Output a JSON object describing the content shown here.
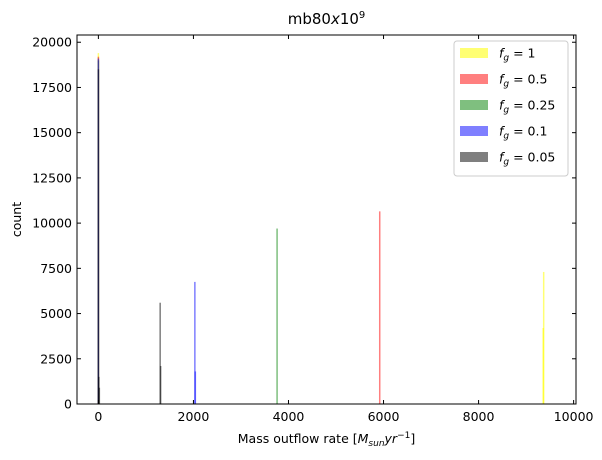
{
  "chart_data": {
    "type": "histogram",
    "title": "mb80x10^9",
    "xlabel": "Mass outflow rate [M_sun yr^-1]",
    "ylabel": "count",
    "xlim": [
      -450,
      10050
    ],
    "ylim": [
      0,
      20400
    ],
    "xticks": [
      0,
      2000,
      4000,
      6000,
      8000,
      10000
    ],
    "yticks": [
      0,
      2500,
      5000,
      7500,
      10000,
      12500,
      15000,
      17500,
      20000
    ],
    "grid": false,
    "legend_position": "top-right",
    "series": [
      {
        "name": "f_g = 1",
        "legend_main": "f",
        "legend_sub": "g",
        "legend_value": " = 1",
        "color": "#ffff00",
        "alpha": 0.55,
        "bars": [
          {
            "x": 0,
            "count": 19400
          },
          {
            "x": 9370,
            "count": 7300
          },
          {
            "x": 9360,
            "count": 4200
          }
        ]
      },
      {
        "name": "f_g = 0.5",
        "legend_main": "f",
        "legend_sub": "g",
        "legend_value": " = 0.5",
        "color": "#ff0000",
        "alpha": 0.5,
        "bars": [
          {
            "x": 0,
            "count": 19200
          },
          {
            "x": 5920,
            "count": 10650
          }
        ]
      },
      {
        "name": "f_g = 0.25",
        "legend_main": "f",
        "legend_sub": "g",
        "legend_value": " = 0.25",
        "color": "#008000",
        "alpha": 0.5,
        "bars": [
          {
            "x": 0,
            "count": 19000
          },
          {
            "x": 3760,
            "count": 9700
          }
        ]
      },
      {
        "name": "f_g = 0.1",
        "legend_main": "f",
        "legend_sub": "g",
        "legend_value": " = 0.1",
        "color": "#0000ff",
        "alpha": 0.5,
        "bars": [
          {
            "x": 0,
            "count": 19100
          },
          {
            "x": 2030,
            "count": 6750
          },
          {
            "x": 2040,
            "count": 1800
          }
        ]
      },
      {
        "name": "f_g = 0.05",
        "legend_main": "f",
        "legend_sub": "g",
        "legend_value": " = 0.05",
        "color": "#000000",
        "alpha": 0.5,
        "bars": [
          {
            "x": 0,
            "count": 18500
          },
          {
            "x": 10,
            "count": 1500
          },
          {
            "x": 20,
            "count": 900
          },
          {
            "x": 1300,
            "count": 5600
          },
          {
            "x": 1310,
            "count": 2100
          }
        ]
      }
    ]
  }
}
